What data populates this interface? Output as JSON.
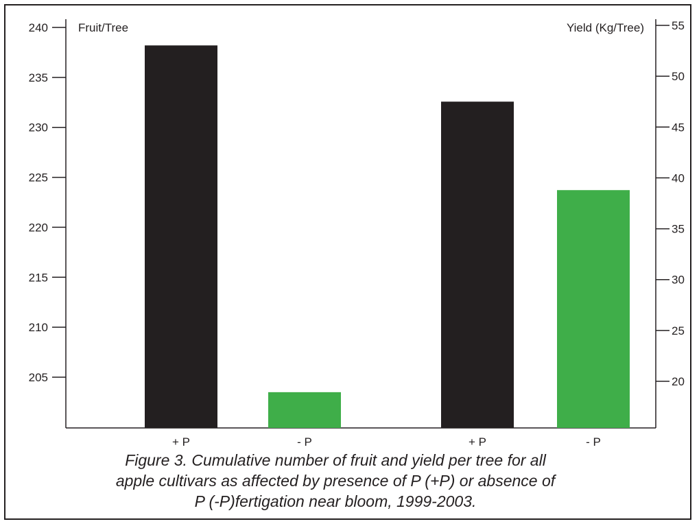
{
  "chart_data": {
    "type": "bar",
    "categories": [
      "+ P",
      "- P",
      "+ P",
      "- P"
    ],
    "series": [
      {
        "name": "Fruit/Tree",
        "axis": "left",
        "values": [
          238.2,
          203.5,
          null,
          null
        ],
        "colors": [
          "#231f20",
          "#3fae49",
          null,
          null
        ]
      },
      {
        "name": "Yield (Kg/Tree)",
        "axis": "right",
        "values": [
          null,
          null,
          47.5,
          38.8
        ],
        "colors": [
          null,
          null,
          "#231f20",
          "#3fae49"
        ]
      }
    ],
    "y_left": {
      "label": "Fruit/Tree",
      "ticks": [
        205,
        210,
        215,
        220,
        225,
        230,
        235,
        240
      ],
      "ylim": [
        201.2,
        240
      ]
    },
    "y_right": {
      "label": "Yield (Kg/Tree)",
      "ticks": [
        20,
        25,
        30,
        35,
        40,
        45,
        50,
        55
      ],
      "ylim": [
        15,
        55
      ]
    },
    "grid": false,
    "legend": "none",
    "colors": {
      "dark_bar": "#231f20",
      "green_bar": "#3fae49"
    }
  },
  "caption": [
    "Figure 3. Cumulative number of fruit and yield per tree for all",
    "apple cultivars as affected by presence of P (+P) or absence of",
    "P (-P)fertigation near bloom, 1999-2003."
  ]
}
